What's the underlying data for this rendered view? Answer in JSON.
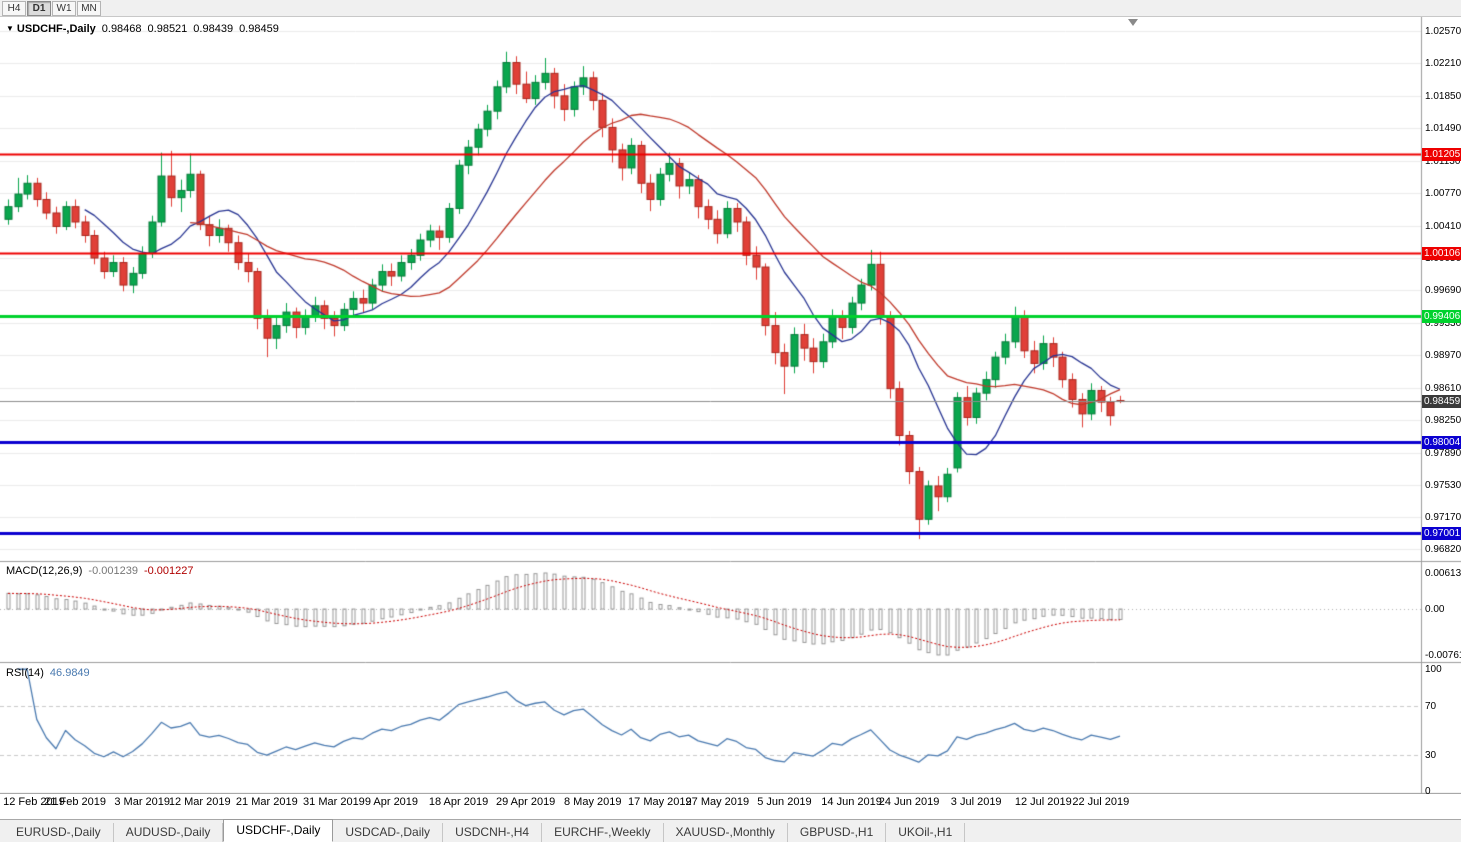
{
  "toolbar": {
    "buttons": [
      {
        "label": "H4",
        "active": false
      },
      {
        "label": "D1",
        "active": true
      },
      {
        "label": "W1",
        "active": false
      },
      {
        "label": "MN",
        "active": false
      }
    ]
  },
  "header": {
    "dropdown_icon": "▼",
    "symbol": "USDCHF-,Daily",
    "open": "0.98468",
    "high": "0.98521",
    "low": "0.98439",
    "close": "0.98459"
  },
  "price_axis": {
    "ticks": [
      "1.02570",
      "1.02210",
      "1.01850",
      "1.01490",
      "1.01130",
      "1.00770",
      "1.00410",
      "1.00050",
      "0.99690",
      "0.99330",
      "0.98970",
      "0.98610",
      "0.98250",
      "0.97890",
      "0.97530",
      "0.97170",
      "0.96820"
    ]
  },
  "levels": [
    {
      "name": "resistance-line-1",
      "label": "1.01205",
      "value": 1.01205,
      "color": "#ee0000",
      "width": 2
    },
    {
      "name": "resistance-line-2",
      "label": "1.00106",
      "value": 1.00106,
      "color": "#ee0000",
      "width": 2
    },
    {
      "name": "support-line-green",
      "label": "0.99406",
      "value": 0.99406,
      "color": "#00d22d",
      "width": 3
    },
    {
      "name": "support-line-blue-1",
      "label": "0.98004",
      "value": 0.98004,
      "color": "#0b00d0",
      "width": 3
    },
    {
      "name": "support-line-blue-2",
      "label": "0.97001",
      "value": 0.97001,
      "color": "#0b00d0",
      "width": 3
    }
  ],
  "current_price": {
    "label": "0.98459",
    "value": 0.98459,
    "badge_color": "#3a3a3a",
    "line_color": "#8d8d8d"
  },
  "macd": {
    "title": "MACD(12,26,9)",
    "value_main": "-0.001239",
    "value_signal": "-0.001227",
    "axis_ticks": [
      "0.00613",
      "0.00",
      "-0.00761"
    ],
    "params": [
      12,
      26,
      9
    ],
    "histogram_color": "#989898",
    "signal_color": "#cc0000"
  },
  "rsi": {
    "title": "RSI(14)",
    "value": "46.9849",
    "axis_ticks": [
      "100",
      "70",
      "30",
      "0"
    ],
    "levels": [
      70,
      30
    ],
    "period": 14,
    "line_color": "#4a7ab0"
  },
  "date_axis": {
    "labels": [
      {
        "text": "12 Feb 2019",
        "i": 0
      },
      {
        "text": "21 Feb 2019",
        "i": 7
      },
      {
        "text": "3 Mar 2019",
        "i": 14
      },
      {
        "text": "12 Mar 2019",
        "i": 20
      },
      {
        "text": "21 Mar 2019",
        "i": 27
      },
      {
        "text": "31 Mar 2019",
        "i": 34
      },
      {
        "text": "9 Apr 2019",
        "i": 40
      },
      {
        "text": "18 Apr 2019",
        "i": 47
      },
      {
        "text": "29 Apr 2019",
        "i": 54
      },
      {
        "text": "8 May 2019",
        "i": 61
      },
      {
        "text": "17 May 2019",
        "i": 68
      },
      {
        "text": "27 May 2019",
        "i": 74
      },
      {
        "text": "5 Jun 2019",
        "i": 81
      },
      {
        "text": "14 Jun 2019",
        "i": 88
      },
      {
        "text": "24 Jun 2019",
        "i": 94
      },
      {
        "text": "3 Jul 2019",
        "i": 101
      },
      {
        "text": "12 Jul 2019",
        "i": 108
      },
      {
        "text": "22 Jul 2019",
        "i": 114
      }
    ]
  },
  "tabs": [
    {
      "label": "EURUSD-,Daily",
      "active": false
    },
    {
      "label": "AUDUSD-,Daily",
      "active": false
    },
    {
      "label": "USDCHF-,Daily",
      "active": true
    },
    {
      "label": "USDCAD-,Daily",
      "active": false
    },
    {
      "label": "USDCNH-,H4",
      "active": false
    },
    {
      "label": "EURCHF-,Weekly",
      "active": false
    },
    {
      "label": "XAUUSD-,Monthly",
      "active": false
    },
    {
      "label": "GBPUSD-,H1",
      "active": false
    },
    {
      "label": "UKOil-,H1",
      "active": false
    }
  ],
  "chart_data": {
    "type": "candlestick",
    "title": "USDCHF Daily",
    "y_axis_range": [
      0.9674,
      1.0267
    ],
    "up_color": "#0aa64e",
    "up_border": "#087a3a",
    "down_color": "#e04038",
    "down_border": "#a8281f",
    "overlays": [
      {
        "type": "sma",
        "period": 9,
        "color": "#283593"
      },
      {
        "type": "sma",
        "period": 20,
        "color": "#c0392b"
      }
    ],
    "candles": [
      [
        1.0048,
        1.007,
        1.0042,
        1.0062
      ],
      [
        1.0062,
        1.0094,
        1.0056,
        1.0076
      ],
      [
        1.0076,
        1.0097,
        1.007,
        1.0088
      ],
      [
        1.0088,
        1.0094,
        1.0062,
        1.007
      ],
      [
        1.007,
        1.0078,
        1.0048,
        1.0055
      ],
      [
        1.0055,
        1.0062,
        1.0032,
        1.004
      ],
      [
        1.004,
        1.0068,
        1.0036,
        1.0062
      ],
      [
        1.0062,
        1.007,
        1.0038,
        1.0045
      ],
      [
        1.0045,
        1.0052,
        1.0022,
        1.003
      ],
      [
        1.003,
        1.0036,
        0.9998,
        1.0005
      ],
      [
        1.0005,
        1.0012,
        0.9982,
        0.999
      ],
      [
        0.999,
        1.0008,
        0.9984,
        1.0
      ],
      [
        1.0,
        1.0006,
        0.9968,
        0.9975
      ],
      [
        0.9975,
        0.9995,
        0.9966,
        0.9988
      ],
      [
        0.9988,
        1.0018,
        0.9982,
        1.001
      ],
      [
        1.001,
        1.0052,
        1.0005,
        1.0045
      ],
      [
        1.0045,
        1.0122,
        1.004,
        1.0096
      ],
      [
        1.0096,
        1.0124,
        1.0062,
        1.0072
      ],
      [
        1.0072,
        1.0092,
        1.0056,
        1.008
      ],
      [
        1.008,
        1.0121,
        1.0072,
        1.0098
      ],
      [
        1.0098,
        1.0102,
        1.0036,
        1.0042
      ],
      [
        1.0042,
        1.0052,
        1.0018,
        1.003
      ],
      [
        1.003,
        1.0048,
        1.0022,
        1.0038
      ],
      [
        1.0038,
        1.0042,
        1.0012,
        1.0022
      ],
      [
        1.0022,
        1.003,
        0.9992,
        1.0
      ],
      [
        1.0,
        1.001,
        0.9978,
        0.999
      ],
      [
        0.999,
        0.9994,
        0.9926,
        0.9938
      ],
      [
        0.9938,
        0.9948,
        0.9895,
        0.9916
      ],
      [
        0.9916,
        0.994,
        0.9904,
        0.993
      ],
      [
        0.993,
        0.9955,
        0.9922,
        0.9945
      ],
      [
        0.9945,
        0.995,
        0.9916,
        0.9928
      ],
      [
        0.9928,
        0.9948,
        0.992,
        0.994
      ],
      [
        0.994,
        0.9962,
        0.9934,
        0.9952
      ],
      [
        0.9952,
        0.9958,
        0.9926,
        0.9938
      ],
      [
        0.9938,
        0.9946,
        0.9918,
        0.993
      ],
      [
        0.993,
        0.9955,
        0.9924,
        0.9948
      ],
      [
        0.9948,
        0.9968,
        0.994,
        0.996
      ],
      [
        0.996,
        0.997,
        0.9944,
        0.9955
      ],
      [
        0.9955,
        0.9982,
        0.9948,
        0.9975
      ],
      [
        0.9975,
        0.9998,
        0.9968,
        0.999
      ],
      [
        0.999,
        0.9999,
        0.9974,
        0.9985
      ],
      [
        0.9985,
        1.0008,
        0.9979,
        1.0
      ],
      [
        1.0,
        1.0015,
        0.9992,
        1.0008
      ],
      [
        1.0008,
        1.0032,
        1.0002,
        1.0025
      ],
      [
        1.0025,
        1.0042,
        1.0017,
        1.0035
      ],
      [
        1.0035,
        1.0041,
        1.0014,
        1.0028
      ],
      [
        1.0028,
        1.0066,
        1.0022,
        1.006
      ],
      [
        1.006,
        1.0114,
        1.0054,
        1.0108
      ],
      [
        1.0108,
        1.0136,
        1.0098,
        1.0128
      ],
      [
        1.0128,
        1.0154,
        1.0119,
        1.0148
      ],
      [
        1.0148,
        1.0175,
        1.014,
        1.0168
      ],
      [
        1.0168,
        1.0202,
        1.0159,
        1.0195
      ],
      [
        1.0195,
        1.0234,
        1.0188,
        1.0222
      ],
      [
        1.0222,
        1.0229,
        1.0187,
        1.0198
      ],
      [
        1.0198,
        1.0212,
        1.0177,
        1.0182
      ],
      [
        1.0182,
        1.0208,
        1.0175,
        1.02
      ],
      [
        1.02,
        1.0227,
        1.0192,
        1.021
      ],
      [
        1.021,
        1.0216,
        1.0171,
        1.0185
      ],
      [
        1.0185,
        1.0198,
        1.0157,
        1.017
      ],
      [
        1.017,
        1.0201,
        1.0162,
        1.0195
      ],
      [
        1.0195,
        1.0218,
        1.0186,
        1.0205
      ],
      [
        1.0205,
        1.0212,
        1.0169,
        1.018
      ],
      [
        1.018,
        1.0188,
        1.0139,
        1.015
      ],
      [
        1.015,
        1.016,
        1.0111,
        1.0125
      ],
      [
        1.0125,
        1.0132,
        1.0091,
        1.0105
      ],
      [
        1.0105,
        1.0138,
        1.0098,
        1.013
      ],
      [
        1.013,
        1.0135,
        1.0077,
        1.0088
      ],
      [
        1.0088,
        1.0098,
        1.0057,
        1.007
      ],
      [
        1.007,
        1.0105,
        1.0063,
        1.0098
      ],
      [
        1.0098,
        1.0122,
        1.009,
        1.011
      ],
      [
        1.011,
        1.0116,
        1.0071,
        1.0085
      ],
      [
        1.0085,
        1.01,
        1.0076,
        1.0092
      ],
      [
        1.0092,
        1.0097,
        1.0049,
        1.0062
      ],
      [
        1.0062,
        1.007,
        1.0037,
        1.0048
      ],
      [
        1.0048,
        1.0058,
        1.0021,
        1.0032
      ],
      [
        1.0032,
        1.0068,
        1.0027,
        1.006
      ],
      [
        1.006,
        1.0066,
        1.0034,
        1.0045
      ],
      [
        1.0045,
        1.0051,
        0.9997,
        1.0008
      ],
      [
        1.0008,
        1.0018,
        0.9981,
        0.9995
      ],
      [
        0.9995,
        0.9999,
        0.9919,
        0.993
      ],
      [
        0.993,
        0.9945,
        0.9887,
        0.99
      ],
      [
        0.99,
        0.991,
        0.9854,
        0.9885
      ],
      [
        0.9885,
        0.9928,
        0.9877,
        0.992
      ],
      [
        0.992,
        0.9932,
        0.9891,
        0.9905
      ],
      [
        0.9905,
        0.9916,
        0.9877,
        0.989
      ],
      [
        0.989,
        0.9921,
        0.9883,
        0.9912
      ],
      [
        0.9912,
        0.9948,
        0.9905,
        0.994
      ],
      [
        0.994,
        0.9947,
        0.9915,
        0.9928
      ],
      [
        0.9928,
        0.9962,
        0.9921,
        0.9955
      ],
      [
        0.9955,
        0.9982,
        0.9947,
        0.9975
      ],
      [
        0.9975,
        1.0014,
        0.9969,
        0.9998
      ],
      [
        0.9998,
        1.0012,
        0.9931,
        0.994
      ],
      [
        0.994,
        0.9946,
        0.9849,
        0.986
      ],
      [
        0.986,
        0.9868,
        0.9797,
        0.9808
      ],
      [
        0.9808,
        0.9813,
        0.9754,
        0.9768
      ],
      [
        0.9768,
        0.9773,
        0.9693,
        0.9715
      ],
      [
        0.9715,
        0.9758,
        0.9709,
        0.9752
      ],
      [
        0.9752,
        0.9763,
        0.9724,
        0.974
      ],
      [
        0.974,
        0.9772,
        0.9734,
        0.9765
      ],
      [
        0.9772,
        0.9856,
        0.9767,
        0.985
      ],
      [
        0.985,
        0.9863,
        0.9819,
        0.9828
      ],
      [
        0.9828,
        0.9861,
        0.9821,
        0.9855
      ],
      [
        0.9855,
        0.9879,
        0.9847,
        0.987
      ],
      [
        0.987,
        0.9901,
        0.9861,
        0.9895
      ],
      [
        0.9895,
        0.9921,
        0.9887,
        0.9912
      ],
      [
        0.9912,
        0.9951,
        0.9905,
        0.994
      ],
      [
        0.994,
        0.9947,
        0.9894,
        0.9902
      ],
      [
        0.9902,
        0.9913,
        0.9877,
        0.9888
      ],
      [
        0.9888,
        0.9919,
        0.9881,
        0.991
      ],
      [
        0.991,
        0.9917,
        0.9884,
        0.9895
      ],
      [
        0.9895,
        0.9901,
        0.9861,
        0.987
      ],
      [
        0.987,
        0.9877,
        0.9839,
        0.9848
      ],
      [
        0.9848,
        0.9855,
        0.9817,
        0.9832
      ],
      [
        0.9832,
        0.9866,
        0.9825,
        0.9858
      ],
      [
        0.9858,
        0.9863,
        0.9834,
        0.9845
      ],
      [
        0.9845,
        0.9851,
        0.9819,
        0.983
      ],
      [
        0.98468,
        0.98521,
        0.98439,
        0.98459
      ]
    ]
  }
}
